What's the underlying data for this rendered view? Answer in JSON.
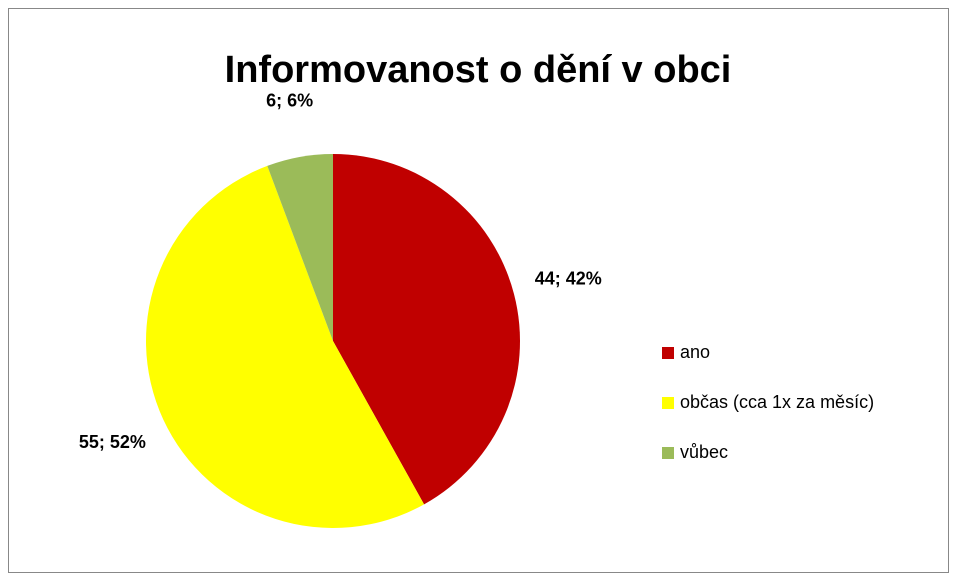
{
  "chart_data": {
    "type": "pie",
    "title": "Informovanost o dění v obci",
    "categories": [
      "ano",
      "občas (cca 1x za měsíc)",
      "vůbec"
    ],
    "values": [
      44,
      55,
      6
    ],
    "value_labels": [
      "44; 42%",
      "55; 52%",
      "6; 6%"
    ],
    "colors": [
      "#c00000",
      "#ffff00",
      "#9bbb59"
    ],
    "legend": "right"
  }
}
